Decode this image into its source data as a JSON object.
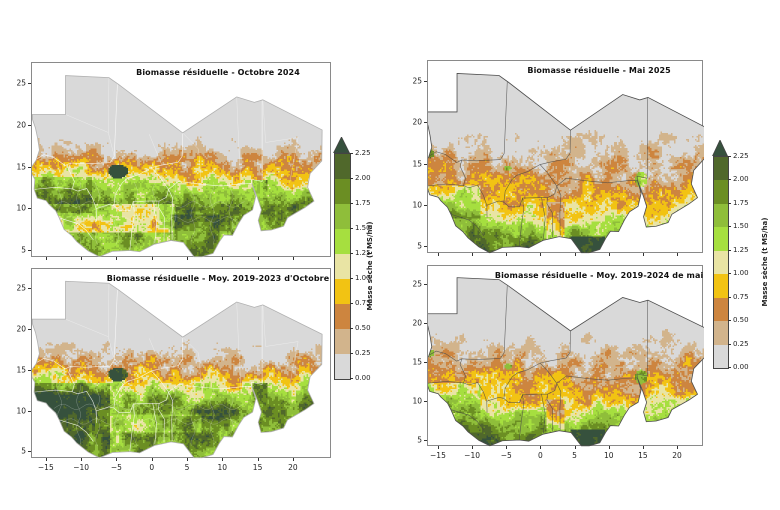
{
  "figure": {
    "background": "#ffffff",
    "frame_color": "#8a8a8a",
    "text_color": "#1a1a1a"
  },
  "chart_data": {
    "type": "heatmap",
    "subtype": "2x2 grid of raster biomass maps over West Africa / Sahel",
    "panels": [
      {
        "id": "octobre-2024",
        "position": "top-left",
        "season": "october",
        "title": "Biomasse résiduelle - Octobre 2024",
        "boundary_lines": "white"
      },
      {
        "id": "moyenne-octobre-2019-2023",
        "position": "bottom-left",
        "season": "october",
        "title": "Biomasse résiduelle - Moy. 2019-2023 d'Octobre",
        "boundary_lines": "white"
      },
      {
        "id": "mai-2025",
        "position": "top-right",
        "season": "may",
        "title": "Biomasse résiduelle - Mai 2025",
        "boundary_lines": "dark"
      },
      {
        "id": "moyenne-mai-2019-2024",
        "position": "bottom-right",
        "season": "may",
        "title": "Biomasse résiduelle - Moy. 2019-2024 de mai",
        "boundary_lines": "dark"
      }
    ],
    "x_ticks": [
      -15,
      -10,
      -5,
      0,
      5,
      10,
      15,
      20
    ],
    "y_ticks": [
      25,
      20,
      15,
      10,
      5
    ],
    "x_range_lon": [
      -17.1,
      25.4
    ],
    "y_range_lat": [
      4.2,
      27.5
    ],
    "grid": false,
    "colorbar": {
      "label": "Masse sèche (t MS/ha)",
      "ticks": [
        "0.00",
        "0.25",
        "0.50",
        "0.75",
        "1.00",
        "1.25",
        "1.50",
        "1.75",
        "2.00",
        "2.25"
      ],
      "tick_step": 0.25,
      "segment_colors": [
        "#d9d9d9",
        "#d2b48c",
        "#cd853f",
        "#f2c313",
        "#e9e4a4",
        "#a6df3f",
        "#8fbe3a",
        "#6b8e23",
        "#50682b"
      ],
      "extend_max_color": "#36513d",
      "units": "t MS/ha"
    },
    "latitude_profile_estimates_tMSha": {
      "october": [
        [
          27,
          0.02
        ],
        [
          19,
          0.05
        ],
        [
          17.8,
          0.25
        ],
        [
          16.5,
          0.55
        ],
        [
          15.5,
          0.8
        ],
        [
          14.5,
          1.05
        ],
        [
          13.5,
          1.35
        ],
        [
          12.5,
          1.65
        ],
        [
          11.2,
          1.9
        ],
        [
          9.8,
          1.85
        ],
        [
          8.5,
          1.65
        ],
        [
          4.2,
          1.55
        ]
      ],
      "may": [
        [
          27,
          0.02
        ],
        [
          20.5,
          0.05
        ],
        [
          18,
          0.15
        ],
        [
          16,
          0.3
        ],
        [
          14.5,
          0.5
        ],
        [
          13,
          0.65
        ],
        [
          11.5,
          0.85
        ],
        [
          10,
          1.1
        ],
        [
          9,
          1.35
        ],
        [
          8,
          1.6
        ],
        [
          6.5,
          1.85
        ],
        [
          4.2,
          2.05
        ]
      ]
    }
  }
}
